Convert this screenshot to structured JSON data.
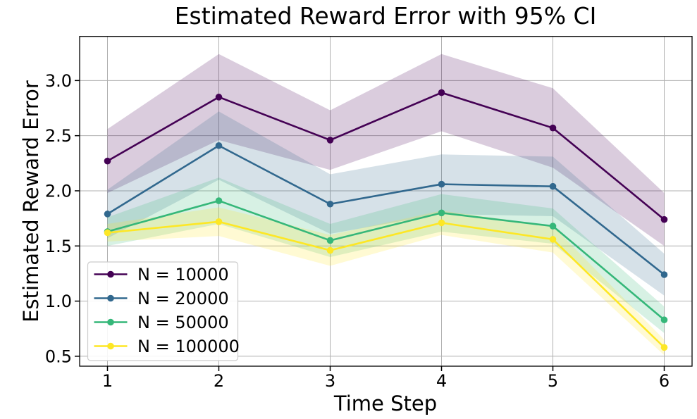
{
  "chart_data": {
    "type": "line",
    "title": "Estimated Reward Error with 95% CI",
    "xlabel": "Time Step",
    "ylabel": "Estimated Reward Error",
    "x": [
      1,
      2,
      3,
      4,
      5,
      6
    ],
    "xtick_labels": [
      "1",
      "2",
      "3",
      "4",
      "5",
      "6"
    ],
    "ytick_values": [
      0.5,
      1.0,
      1.5,
      2.0,
      2.5,
      3.0
    ],
    "ytick_labels": [
      "0.5",
      "1.0",
      "1.5",
      "2.0",
      "2.5",
      "3.0"
    ],
    "xlim": [
      0.75,
      6.25
    ],
    "ylim": [
      0.41,
      3.4
    ],
    "grid": true,
    "ci_level": "95%",
    "ci_alpha": 0.2,
    "legend_position": "lower-left",
    "series": [
      {
        "name": "N = 10000",
        "color": "#440154",
        "values": [
          2.27,
          2.85,
          2.46,
          2.89,
          2.57,
          1.74
        ],
        "ci_lower": [
          1.98,
          2.46,
          2.19,
          2.54,
          2.21,
          1.5
        ],
        "ci_upper": [
          2.56,
          3.24,
          2.73,
          3.24,
          2.93,
          1.98
        ]
      },
      {
        "name": "N = 20000",
        "color": "#31688e",
        "values": [
          1.79,
          2.41,
          1.88,
          2.06,
          2.04,
          1.24
        ],
        "ci_lower": [
          1.57,
          2.1,
          1.61,
          1.79,
          1.77,
          1.05
        ],
        "ci_upper": [
          2.01,
          2.72,
          2.15,
          2.33,
          2.31,
          1.43
        ]
      },
      {
        "name": "N = 50000",
        "color": "#35b779",
        "values": [
          1.63,
          1.91,
          1.55,
          1.8,
          1.68,
          0.83
        ],
        "ci_lower": [
          1.5,
          1.7,
          1.4,
          1.63,
          1.52,
          0.71
        ],
        "ci_upper": [
          1.76,
          2.12,
          1.7,
          1.97,
          1.84,
          0.95
        ]
      },
      {
        "name": "N = 100000",
        "color": "#fde725",
        "values": [
          1.62,
          1.72,
          1.46,
          1.71,
          1.56,
          0.58
        ],
        "ci_lower": [
          1.54,
          1.59,
          1.32,
          1.6,
          1.44,
          0.51
        ],
        "ci_upper": [
          1.7,
          1.85,
          1.6,
          1.82,
          1.68,
          0.65
        ]
      }
    ]
  },
  "colors": {
    "background": "#ffffff",
    "grid": "#b0b0b0",
    "spine": "#000000",
    "legend_border": "#cccccc",
    "legend_background": "#ffffff"
  }
}
